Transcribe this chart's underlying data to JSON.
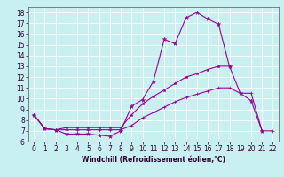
{
  "xlabel": "Windchill (Refroidissement éolien,°C)",
  "bg_color": "#c8f0f0",
  "line_color": "#990099",
  "xlim": [
    -0.5,
    22.5
  ],
  "ylim": [
    6,
    18.5
  ],
  "xticks": [
    0,
    1,
    2,
    3,
    4,
    5,
    6,
    7,
    8,
    9,
    10,
    11,
    12,
    13,
    14,
    15,
    16,
    17,
    18,
    19,
    20,
    21,
    22
  ],
  "yticks": [
    6,
    7,
    8,
    9,
    10,
    11,
    12,
    13,
    14,
    15,
    16,
    17,
    18
  ],
  "line1_x": [
    0,
    1,
    2,
    3,
    4,
    5,
    6,
    7,
    8,
    9,
    10,
    11,
    12,
    13,
    14,
    15,
    16,
    17,
    18,
    19,
    20,
    21
  ],
  "line1_y": [
    8.5,
    7.2,
    7.1,
    6.7,
    6.7,
    6.7,
    6.6,
    6.5,
    7.0,
    9.3,
    9.9,
    11.6,
    15.5,
    15.1,
    17.5,
    18.0,
    17.4,
    16.9,
    13.0,
    10.5,
    9.8,
    7.0
  ],
  "line2_x": [
    0,
    1,
    2,
    3,
    4,
    5,
    6,
    7,
    8,
    9,
    10,
    11,
    12,
    13,
    14,
    15,
    16,
    17,
    18
  ],
  "line2_y": [
    8.5,
    7.2,
    7.1,
    7.3,
    7.3,
    7.3,
    7.3,
    7.3,
    7.3,
    8.5,
    9.5,
    10.2,
    10.8,
    11.4,
    12.0,
    12.3,
    12.7,
    13.0,
    13.0
  ],
  "line3_x": [
    0,
    1,
    2,
    3,
    4,
    5,
    6,
    7,
    8,
    9,
    10,
    11,
    12,
    13,
    14,
    15,
    16,
    17,
    18,
    19,
    20,
    21,
    22
  ],
  "line3_y": [
    8.5,
    7.2,
    7.1,
    7.1,
    7.1,
    7.1,
    7.1,
    7.1,
    7.1,
    7.5,
    8.2,
    8.7,
    9.2,
    9.7,
    10.1,
    10.4,
    10.7,
    11.0,
    11.0,
    10.5,
    10.5,
    7.0,
    7.0
  ],
  "grid_color": "#ffffff",
  "tick_fontsize": 5.5,
  "xlabel_fontsize": 5.5
}
